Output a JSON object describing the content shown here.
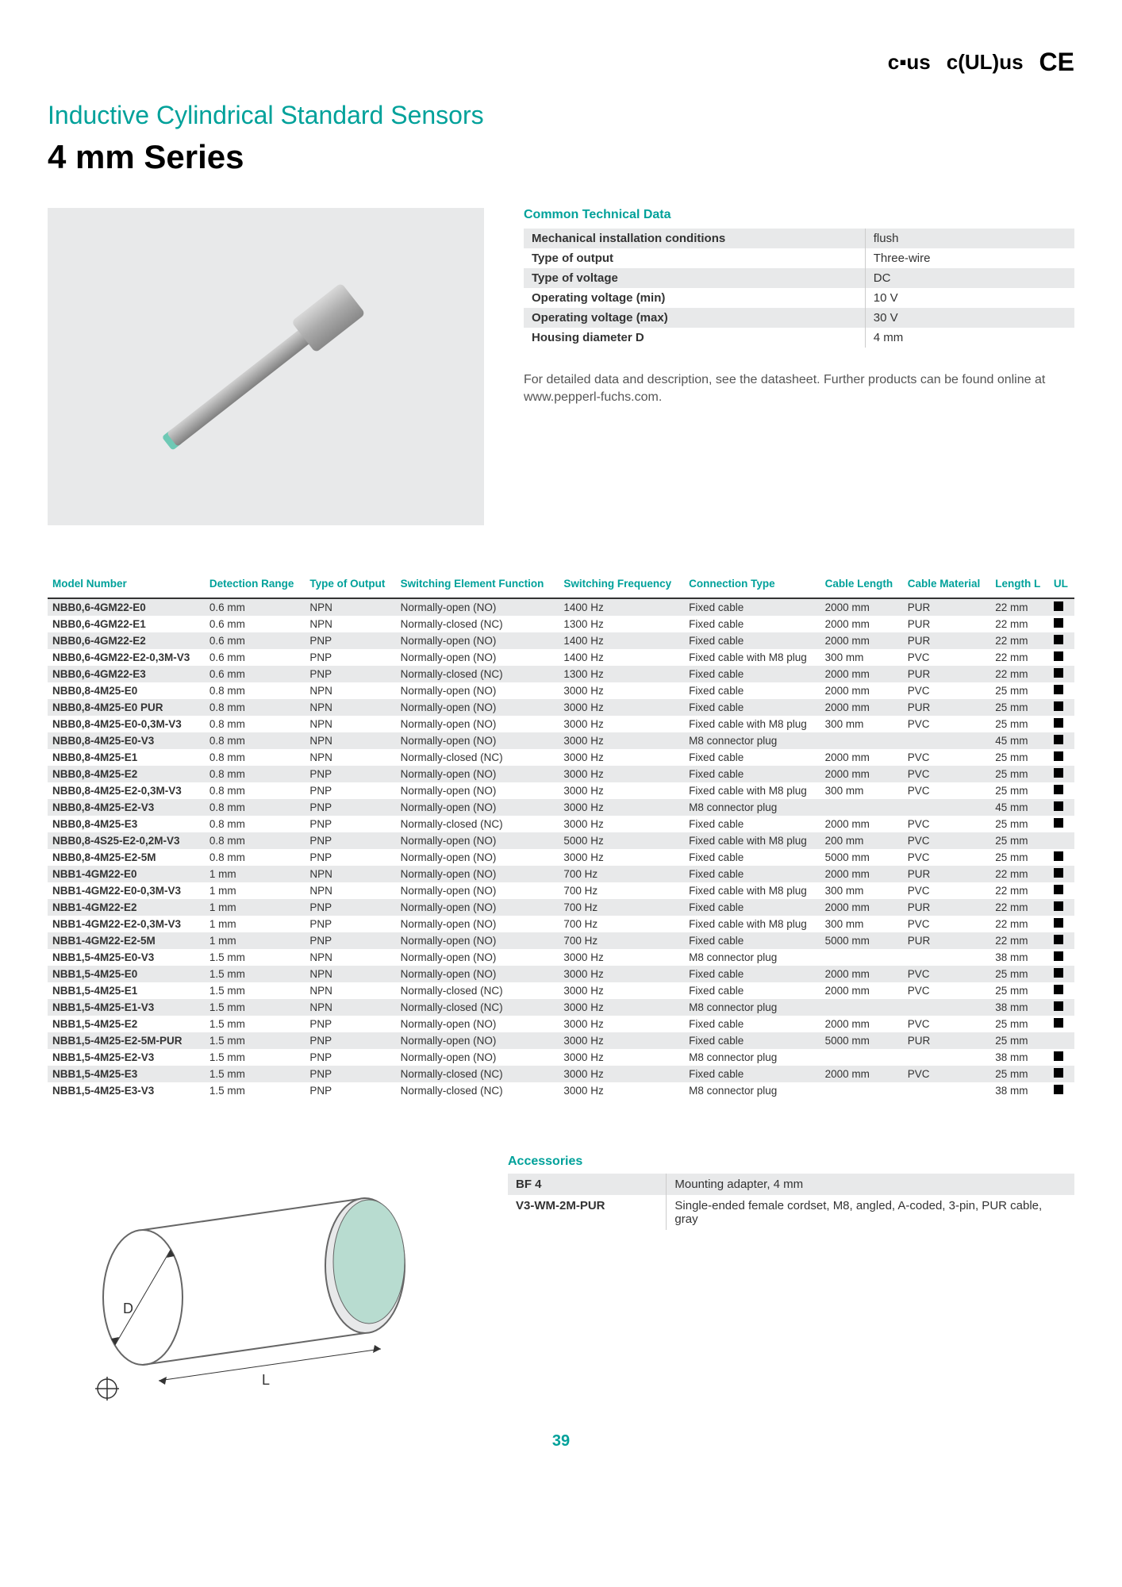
{
  "colors": {
    "accent": "#00a19a",
    "text": "#333333",
    "row_alt": "#e8e9ea",
    "black": "#000000"
  },
  "header": {
    "subtitle": "Inductive Cylindrical Standard Sensors",
    "title": "4 mm Series"
  },
  "certifications": [
    "cULus",
    "cULus",
    "CE"
  ],
  "tech": {
    "title": "Common Technical Data",
    "rows": [
      {
        "label": "Mechanical installation conditions",
        "value": "flush"
      },
      {
        "label": "Type of output",
        "value": "Three-wire"
      },
      {
        "label": "Type of voltage",
        "value": "DC"
      },
      {
        "label": "Operating voltage (min)",
        "value": "10 V"
      },
      {
        "label": "Operating voltage (max)",
        "value": "30 V"
      },
      {
        "label": "Housing diameter D",
        "value": "4 mm"
      }
    ],
    "note": "For detailed data and description, see the datasheet. Further products can be found online at www.pepperl-fuchs.com."
  },
  "table": {
    "columns": [
      "Model Number",
      "Detection Range",
      "Type of Output",
      "Switching Element Function",
      "Switching Frequency",
      "Connection Type",
      "Cable Length",
      "Cable Material",
      "Length L",
      "UL"
    ],
    "rows": [
      [
        "NBB0,6-4GM22-E0",
        "0.6 mm",
        "NPN",
        "Normally-open (NO)",
        "1400 Hz",
        "Fixed cable",
        "2000 mm",
        "PUR",
        "22 mm",
        true
      ],
      [
        "NBB0,6-4GM22-E1",
        "0.6 mm",
        "NPN",
        "Normally-closed (NC)",
        "1300 Hz",
        "Fixed cable",
        "2000 mm",
        "PUR",
        "22 mm",
        true
      ],
      [
        "NBB0,6-4GM22-E2",
        "0.6 mm",
        "PNP",
        "Normally-open (NO)",
        "1400 Hz",
        "Fixed cable",
        "2000 mm",
        "PUR",
        "22 mm",
        true
      ],
      [
        "NBB0,6-4GM22-E2-0,3M-V3",
        "0.6 mm",
        "PNP",
        "Normally-open (NO)",
        "1400 Hz",
        "Fixed cable with M8 plug",
        "300 mm",
        "PVC",
        "22 mm",
        true
      ],
      [
        "NBB0,6-4GM22-E3",
        "0.6 mm",
        "PNP",
        "Normally-closed (NC)",
        "1300 Hz",
        "Fixed cable",
        "2000 mm",
        "PUR",
        "22 mm",
        true
      ],
      [
        "NBB0,8-4M25-E0",
        "0.8 mm",
        "NPN",
        "Normally-open (NO)",
        "3000 Hz",
        "Fixed cable",
        "2000 mm",
        "PVC",
        "25 mm",
        true
      ],
      [
        "NBB0,8-4M25-E0 PUR",
        "0.8 mm",
        "NPN",
        "Normally-open (NO)",
        "3000 Hz",
        "Fixed cable",
        "2000 mm",
        "PUR",
        "25 mm",
        true
      ],
      [
        "NBB0,8-4M25-E0-0,3M-V3",
        "0.8 mm",
        "NPN",
        "Normally-open (NO)",
        "3000 Hz",
        "Fixed cable with M8 plug",
        "300 mm",
        "PVC",
        "25 mm",
        true
      ],
      [
        "NBB0,8-4M25-E0-V3",
        "0.8 mm",
        "NPN",
        "Normally-open (NO)",
        "3000 Hz",
        "M8 connector plug",
        "",
        "",
        "45 mm",
        true
      ],
      [
        "NBB0,8-4M25-E1",
        "0.8 mm",
        "NPN",
        "Normally-closed (NC)",
        "3000 Hz",
        "Fixed cable",
        "2000 mm",
        "PVC",
        "25 mm",
        true
      ],
      [
        "NBB0,8-4M25-E2",
        "0.8 mm",
        "PNP",
        "Normally-open (NO)",
        "3000 Hz",
        "Fixed cable",
        "2000 mm",
        "PVC",
        "25 mm",
        true
      ],
      [
        "NBB0,8-4M25-E2-0,3M-V3",
        "0.8 mm",
        "PNP",
        "Normally-open (NO)",
        "3000 Hz",
        "Fixed cable with M8 plug",
        "300 mm",
        "PVC",
        "25 mm",
        true
      ],
      [
        "NBB0,8-4M25-E2-V3",
        "0.8 mm",
        "PNP",
        "Normally-open (NO)",
        "3000 Hz",
        "M8 connector plug",
        "",
        "",
        "45 mm",
        true
      ],
      [
        "NBB0,8-4M25-E3",
        "0.8 mm",
        "PNP",
        "Normally-closed (NC)",
        "3000 Hz",
        "Fixed cable",
        "2000 mm",
        "PVC",
        "25 mm",
        true
      ],
      [
        "NBB0,8-4S25-E2-0,2M-V3",
        "0.8 mm",
        "PNP",
        "Normally-open (NO)",
        "5000 Hz",
        "Fixed cable with M8 plug",
        "200 mm",
        "PVC",
        "25 mm",
        false
      ],
      [
        "NBB0,8-4M25-E2-5M",
        "0.8 mm",
        "PNP",
        "Normally-open (NO)",
        "3000 Hz",
        "Fixed cable",
        "5000 mm",
        "PVC",
        "25 mm",
        true
      ],
      [
        "NBB1-4GM22-E0",
        "1 mm",
        "NPN",
        "Normally-open (NO)",
        "700 Hz",
        "Fixed cable",
        "2000 mm",
        "PUR",
        "22 mm",
        true
      ],
      [
        "NBB1-4GM22-E0-0,3M-V3",
        "1 mm",
        "NPN",
        "Normally-open (NO)",
        "700 Hz",
        "Fixed cable with M8 plug",
        "300 mm",
        "PVC",
        "22 mm",
        true
      ],
      [
        "NBB1-4GM22-E2",
        "1 mm",
        "PNP",
        "Normally-open (NO)",
        "700 Hz",
        "Fixed cable",
        "2000 mm",
        "PUR",
        "22 mm",
        true
      ],
      [
        "NBB1-4GM22-E2-0,3M-V3",
        "1 mm",
        "PNP",
        "Normally-open (NO)",
        "700 Hz",
        "Fixed cable with M8 plug",
        "300 mm",
        "PVC",
        "22 mm",
        true
      ],
      [
        "NBB1-4GM22-E2-5M",
        "1 mm",
        "PNP",
        "Normally-open (NO)",
        "700 Hz",
        "Fixed cable",
        "5000 mm",
        "PUR",
        "22 mm",
        true
      ],
      [
        "NBB1,5-4M25-E0-V3",
        "1.5 mm",
        "NPN",
        "Normally-open (NO)",
        "3000 Hz",
        "M8 connector plug",
        "",
        "",
        "38 mm",
        true
      ],
      [
        "NBB1,5-4M25-E0",
        "1.5 mm",
        "NPN",
        "Normally-open (NO)",
        "3000 Hz",
        "Fixed cable",
        "2000 mm",
        "PVC",
        "25 mm",
        true
      ],
      [
        "NBB1,5-4M25-E1",
        "1.5 mm",
        "NPN",
        "Normally-closed (NC)",
        "3000 Hz",
        "Fixed cable",
        "2000 mm",
        "PVC",
        "25 mm",
        true
      ],
      [
        "NBB1,5-4M25-E1-V3",
        "1.5 mm",
        "NPN",
        "Normally-closed (NC)",
        "3000 Hz",
        "M8 connector plug",
        "",
        "",
        "38 mm",
        true
      ],
      [
        "NBB1,5-4M25-E2",
        "1.5 mm",
        "PNP",
        "Normally-open (NO)",
        "3000 Hz",
        "Fixed cable",
        "2000 mm",
        "PVC",
        "25 mm",
        true
      ],
      [
        "NBB1,5-4M25-E2-5M-PUR",
        "1.5 mm",
        "PNP",
        "Normally-open (NO)",
        "3000 Hz",
        "Fixed cable",
        "5000 mm",
        "PUR",
        "25 mm",
        false
      ],
      [
        "NBB1,5-4M25-E2-V3",
        "1.5 mm",
        "PNP",
        "Normally-open (NO)",
        "3000 Hz",
        "M8 connector plug",
        "",
        "",
        "38 mm",
        true
      ],
      [
        "NBB1,5-4M25-E3",
        "1.5 mm",
        "PNP",
        "Normally-closed (NC)",
        "3000 Hz",
        "Fixed cable",
        "2000 mm",
        "PVC",
        "25 mm",
        true
      ],
      [
        "NBB1,5-4M25-E3-V3",
        "1.5 mm",
        "PNP",
        "Normally-closed (NC)",
        "3000 Hz",
        "M8 connector plug",
        "",
        "",
        "38 mm",
        true
      ]
    ]
  },
  "accessories": {
    "title": "Accessories",
    "rows": [
      {
        "code": "BF 4",
        "desc": "Mounting adapter, 4 mm"
      },
      {
        "code": "V3-WM-2M-PUR",
        "desc": "Single-ended female cordset, M8, angled, A-coded, 3-pin, PUR cable, gray"
      }
    ]
  },
  "diagram": {
    "labels": {
      "d": "D",
      "l": "L"
    }
  },
  "page_number": "39"
}
